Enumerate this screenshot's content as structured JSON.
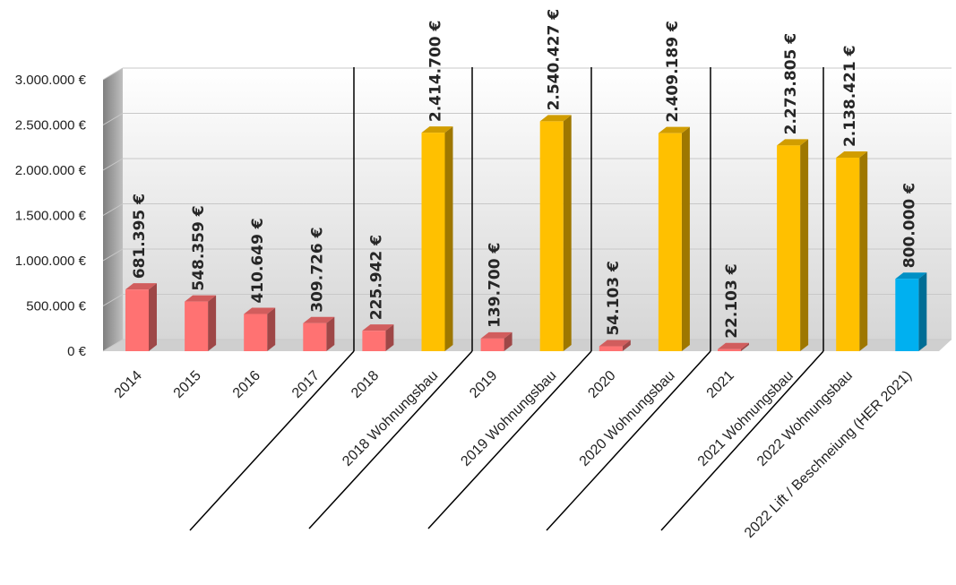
{
  "chart_data": {
    "type": "bar",
    "title": "",
    "xlabel": "",
    "ylabel": "",
    "ylim": [
      0,
      3000000
    ],
    "y_ticks": [
      "0 €",
      "500.000 €",
      "1.000.000 €",
      "1.500.000 €",
      "2.000.000 €",
      "2.500.000 €",
      "3.000.000 €"
    ],
    "grid": true,
    "legend": "none",
    "colors": {
      "red": "#ff7272",
      "gold": "#ffc000",
      "blue": "#00b0f0"
    },
    "categories": [
      "2014",
      "2015",
      "2016",
      "2017",
      "2018",
      "2018 Wohnungsbau",
      "2019",
      "2019 Wohnungsbau",
      "2020",
      "2020 Wohnungsbau",
      "2021",
      "2021 Wohnungsbau",
      "2022 Wohnungsbau",
      "2022 Lift / Beschneiung (HER 2021)"
    ],
    "values": [
      681395,
      548359,
      410649,
      309726,
      225942,
      2414700,
      139700,
      2540427,
      54103,
      2409189,
      22103,
      2273805,
      2138421,
      800000
    ],
    "value_labels": [
      "681.395 €",
      "548.359 €",
      "410.649 €",
      "309.726 €",
      "225.942 €",
      "2.414.700 €",
      "139.700 €",
      "2.540.427 €",
      "54.103 €",
      "2.409.189 €",
      "22.103 €",
      "2.273.805 €",
      "2.138.421 €",
      "800.000 €"
    ],
    "bar_colors": [
      "red",
      "red",
      "red",
      "red",
      "red",
      "gold",
      "red",
      "gold",
      "red",
      "gold",
      "red",
      "gold",
      "gold",
      "blue"
    ]
  }
}
